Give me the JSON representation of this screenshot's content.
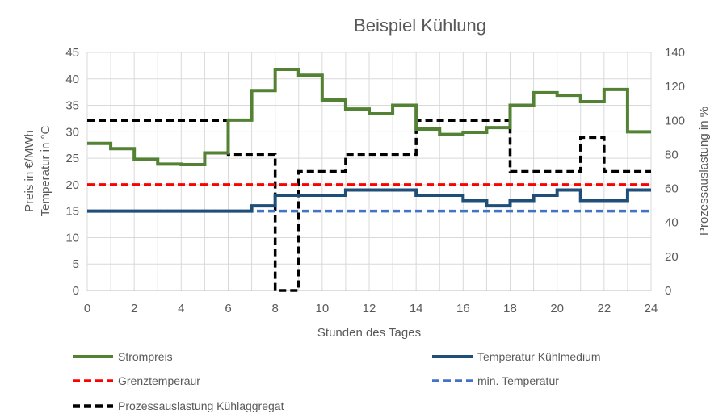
{
  "chart_data": {
    "type": "line",
    "title": "Beispiel Kühlung",
    "xlabel": "Stunden des Tages",
    "ylabel": [
      "Preis in €/MWh",
      "Temperatur in °C"
    ],
    "y2label": "Prozessauslastung in %",
    "xlim": [
      0,
      24
    ],
    "ylim": [
      0,
      45
    ],
    "y2lim": [
      0,
      140
    ],
    "xticks": [
      0,
      2,
      4,
      6,
      8,
      10,
      12,
      14,
      16,
      18,
      20,
      22,
      24
    ],
    "yticks": [
      0,
      5,
      10,
      15,
      20,
      25,
      30,
      35,
      40,
      45
    ],
    "y2ticks": [
      0,
      20,
      40,
      60,
      80,
      100,
      120,
      140
    ],
    "grid": true,
    "legend_position": "bottom",
    "series": [
      {
        "name": "Strompreis",
        "axis": "left",
        "style": "step",
        "color": "#548235",
        "dash": false,
        "x": [
          0,
          1,
          2,
          3,
          4,
          5,
          6,
          7,
          8,
          9,
          10,
          11,
          12,
          13,
          14,
          15,
          16,
          17,
          18,
          19,
          20,
          21,
          22,
          23
        ],
        "values": [
          27.8,
          26.8,
          24.8,
          23.9,
          23.8,
          26,
          32.2,
          37.8,
          41.8,
          40.7,
          36,
          34.3,
          33.4,
          35,
          30.5,
          29.5,
          29.9,
          30.8,
          35,
          37.4,
          36.9,
          35.7,
          38,
          30
        ]
      },
      {
        "name": "Temperatur Kühlmedium",
        "axis": "left",
        "style": "step",
        "color": "#1F4E79",
        "dash": false,
        "x": [
          0,
          1,
          2,
          3,
          4,
          5,
          6,
          7,
          8,
          9,
          10,
          11,
          12,
          13,
          14,
          15,
          16,
          17,
          18,
          19,
          20,
          21,
          22,
          23
        ],
        "values": [
          15,
          15,
          15,
          15,
          15,
          15,
          15,
          16,
          18,
          18,
          18,
          19,
          19,
          19,
          18,
          18,
          17,
          16,
          17,
          18,
          19,
          17,
          17,
          19
        ]
      },
      {
        "name": "Grenztemperaur",
        "axis": "left",
        "style": "flat",
        "color": "#FF0000",
        "dash": true,
        "values": [
          20
        ]
      },
      {
        "name": "min. Temperatur",
        "axis": "left",
        "style": "flat",
        "color": "#4472C4",
        "dash": true,
        "values": [
          15
        ]
      },
      {
        "name": "Prozessauslastung Kühlaggregat",
        "axis": "right",
        "style": "step",
        "color": "#000000",
        "dash": true,
        "x": [
          0,
          1,
          2,
          3,
          4,
          5,
          6,
          7,
          8,
          9,
          10,
          11,
          12,
          13,
          14,
          15,
          16,
          17,
          18,
          19,
          20,
          21,
          22,
          23
        ],
        "values": [
          100,
          100,
          100,
          100,
          100,
          100,
          80,
          80,
          0,
          70,
          70,
          80,
          80,
          80,
          100,
          100,
          100,
          100,
          70,
          70,
          70,
          90,
          70,
          70
        ]
      }
    ]
  }
}
